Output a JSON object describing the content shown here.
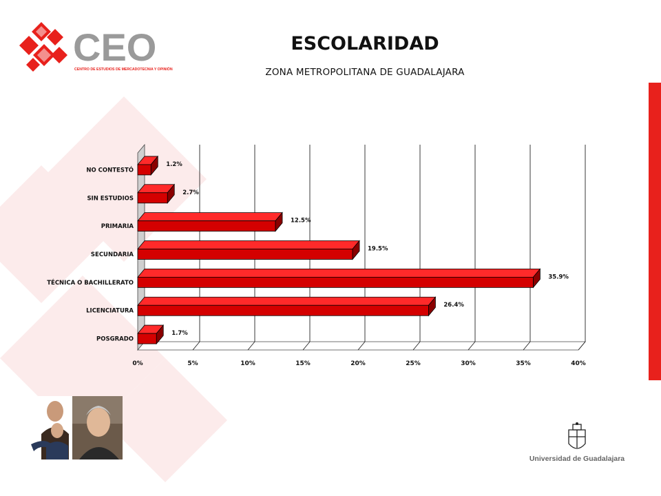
{
  "header": {
    "title": "ESCOLARIDAD",
    "subtitle": "ZONA METROPOLITANA DE GUADALAJARA"
  },
  "logo": {
    "brand": "CEO",
    "tagline": "CENTRO DE ESTUDIOS DE MERCADOTECNIA Y OPINIÓN"
  },
  "footer": {
    "university": "Universidad de Guadalajara"
  },
  "colors": {
    "accent": "#e8211c",
    "bar_front": "#d40000",
    "bar_top": "#ff2a2a",
    "bar_side": "#8a0000",
    "logo_gray": "#9a9a9a"
  },
  "chart_data": {
    "type": "bar",
    "orientation": "horizontal",
    "categories": [
      "NO CONTESTÓ",
      "SIN ESTUDIOS",
      "PRIMARIA",
      "SECUNDARIA",
      "TÉCNICA O BACHILLERATO",
      "LICENCIATURA",
      "POSGRADO"
    ],
    "values": [
      1.2,
      2.7,
      12.5,
      19.5,
      35.9,
      26.4,
      1.7
    ],
    "value_labels": [
      "1.2%",
      "2.7%",
      "12.5%",
      "19.5%",
      "35.9%",
      "26.4%",
      "1.7%"
    ],
    "xlim": [
      0,
      40
    ],
    "xticks": [
      "0%",
      "5%",
      "10%",
      "15%",
      "20%",
      "25%",
      "30%",
      "35%",
      "40%"
    ],
    "grid": true,
    "legend": "none"
  }
}
